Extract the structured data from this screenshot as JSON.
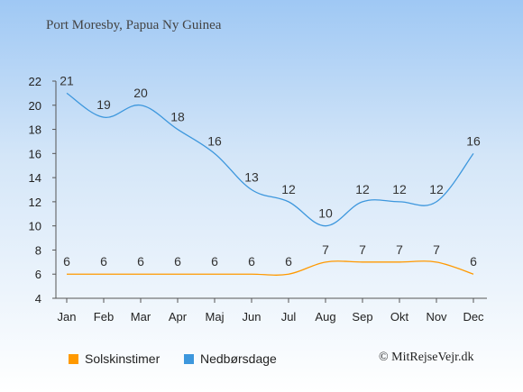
{
  "title": "Port Moresby, Papua Ny Guinea",
  "credit": "© MitRejseVejr.dk",
  "colors": {
    "sun": "#ff9900",
    "rain": "#3d97dd"
  },
  "chart_data": {
    "type": "line",
    "categories": [
      "Jan",
      "Feb",
      "Mar",
      "Apr",
      "Maj",
      "Jun",
      "Jul",
      "Aug",
      "Sep",
      "Okt",
      "Nov",
      "Dec"
    ],
    "ylim": [
      4,
      22
    ],
    "yticks": [
      4,
      6,
      8,
      10,
      12,
      14,
      16,
      18,
      20,
      22
    ],
    "grid": false,
    "legend_position": "bottom",
    "series": [
      {
        "name": "Solskinstimer",
        "key": "sun",
        "values": [
          6,
          6,
          6,
          6,
          6,
          6,
          6,
          7,
          7,
          7,
          7,
          6
        ]
      },
      {
        "name": "Nedbørsdage",
        "key": "rain",
        "values": [
          21,
          19,
          20,
          18,
          16,
          13,
          12,
          10,
          12,
          12,
          12,
          16
        ]
      }
    ]
  }
}
